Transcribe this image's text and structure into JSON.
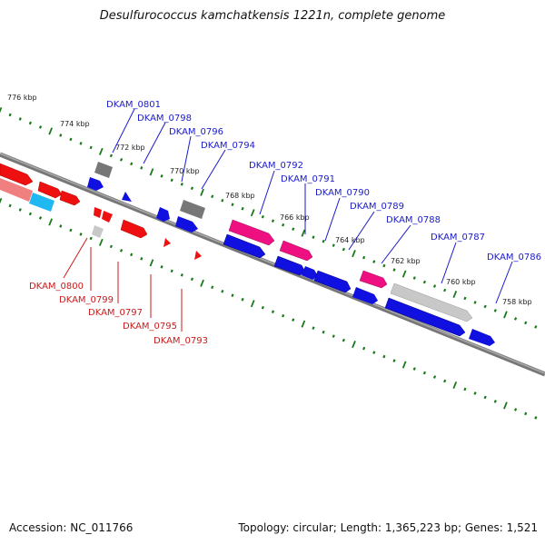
{
  "title": "Desulfurococcus kamchatkensis 1221n, complete genome",
  "footer": {
    "accession": "Accession: NC_011766",
    "summary": "Topology: circular; Length: 1,365,223 bp; Genes: 1,521"
  },
  "scale_labels": [
    "776 kbp",
    "774 kbp",
    "772 kbp",
    "770 kbp",
    "768 kbp",
    "766 kbp",
    "764 kbp",
    "762 kbp",
    "760 kbp",
    "758 kbp"
  ],
  "genes_top": [
    "DKAM_0801",
    "DKAM_0798",
    "DKAM_0796",
    "DKAM_0794",
    "DKAM_0792",
    "DKAM_0791",
    "DKAM_0790",
    "DKAM_0789",
    "DKAM_0788",
    "DKAM_0787",
    "DKAM_0786"
  ],
  "genes_bottom": [
    "DKAM_0800",
    "DKAM_0799",
    "DKAM_0797",
    "DKAM_0795",
    "DKAM_0793"
  ],
  "colors": {
    "forward": "#1010e0",
    "reverse": "#ee1010",
    "pink": "#ee1080",
    "gray": "#888888",
    "lightgray": "#c8c8c8",
    "cyan": "#20b8f0",
    "salmon": "#f08080",
    "tick": "#1a7a1a"
  }
}
